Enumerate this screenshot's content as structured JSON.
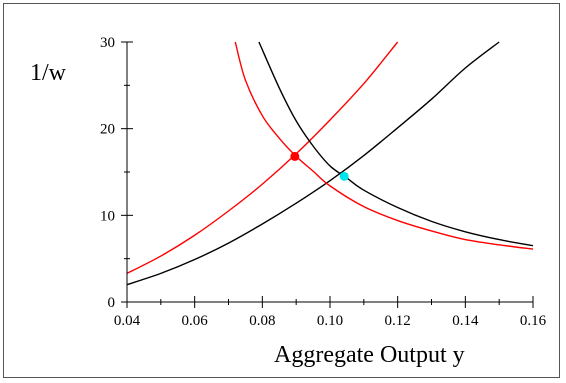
{
  "chart_data": {
    "type": "line",
    "title": "",
    "xlabel": "Aggregate Output y",
    "ylabel": "1/w",
    "xlim": [
      0.04,
      0.16
    ],
    "ylim": [
      0,
      30
    ],
    "x_ticks": [
      0.04,
      0.06,
      0.08,
      0.1,
      0.12,
      0.14,
      0.16
    ],
    "x_tick_labels": [
      "0.04",
      "0.06",
      "0.08",
      "0.10",
      "0.12",
      "0.14",
      "0.16"
    ],
    "y_ticks": [
      0,
      10,
      20,
      30
    ],
    "y_tick_labels": [
      "0",
      "10",
      "20",
      "30"
    ],
    "grid": false,
    "series": [
      {
        "color": "#000000",
        "x": [
          0.04,
          0.05,
          0.06,
          0.07,
          0.08,
          0.09,
          0.1,
          0.11,
          0.12,
          0.13,
          0.14,
          0.15
        ],
        "y": [
          2.0,
          3.3,
          4.9,
          6.8,
          9.0,
          11.4,
          14.0,
          16.9,
          20.1,
          23.4,
          27.0,
          30.0
        ]
      },
      {
        "color": "#ff0000",
        "x": [
          0.04,
          0.05,
          0.06,
          0.07,
          0.08,
          0.09,
          0.1,
          0.11,
          0.12
        ],
        "y": [
          3.3,
          5.3,
          7.7,
          10.5,
          13.6,
          17.1,
          21.0,
          25.2,
          30.0
        ]
      },
      {
        "color": "#000000",
        "x": [
          0.079,
          0.085,
          0.09,
          0.095,
          0.1,
          0.105,
          0.11,
          0.12,
          0.13,
          0.14,
          0.15,
          0.16
        ],
        "y": [
          30.0,
          24.7,
          20.9,
          18.0,
          15.7,
          14.3,
          12.9,
          10.9,
          9.3,
          8.1,
          7.2,
          6.5
        ]
      },
      {
        "color": "#ff0000",
        "x": [
          0.072,
          0.075,
          0.08,
          0.085,
          0.09,
          0.095,
          0.1,
          0.11,
          0.12,
          0.13,
          0.14,
          0.15,
          0.16
        ],
        "y": [
          30.0,
          25.6,
          21.5,
          18.9,
          16.8,
          15.1,
          13.4,
          11.0,
          9.4,
          8.2,
          7.2,
          6.6,
          6.1
        ]
      }
    ],
    "points": [
      {
        "x": 0.0896,
        "y": 16.8,
        "color": "#ff0000"
      },
      {
        "x": 0.1042,
        "y": 14.5,
        "color": "#00e5ee"
      }
    ]
  }
}
